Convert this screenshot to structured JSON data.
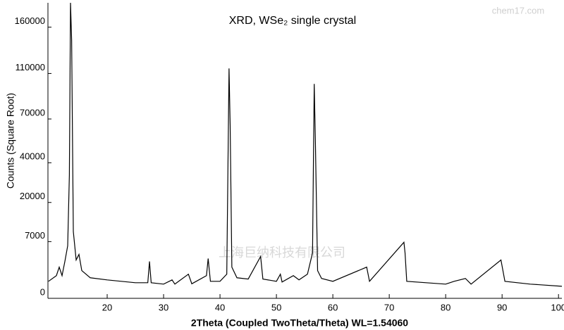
{
  "chart_data": {
    "type": "line",
    "title": "XRD, WSe₂ single crystal",
    "x_label": "2Theta (Coupled TwoTheta/Theta) WL=1.54060",
    "y_label": "Counts (Square Root)",
    "y_scale": "sqrt",
    "watermarks": [
      "上海巨纳科技有限公司",
      "chem17.com"
    ],
    "x": [
      9.6,
      11,
      11.5,
      12,
      12.5,
      13,
      13.3,
      13.5,
      13.7,
      14.0,
      14.5,
      15,
      15.5,
      17,
      20,
      25,
      27.2,
      27.5,
      27.8,
      30,
      31.5,
      32,
      34.4,
      35,
      37.6,
      37.9,
      38.3,
      40,
      41.2,
      41.6,
      41.8,
      42.1,
      43,
      45,
      47.2,
      47.6,
      50,
      50.7,
      51,
      53,
      54,
      55.5,
      56.4,
      56.7,
      56.9,
      57.3,
      58,
      60,
      66,
      66.5,
      72.6,
      72.8,
      73.1,
      80,
      81.5,
      83.5,
      84.5,
      89.8,
      90.5,
      95,
      100.6
    ],
    "series": [
      {
        "name": "WSe2",
        "color": "#000000",
        "values": [
          630,
          1120,
          2120,
          1120,
          2960,
          6000,
          33200,
          190000,
          145000,
          9700,
          3200,
          4200,
          1670,
          920,
          740,
          530,
          530,
          2960,
          530,
          440,
          740,
          440,
          1270,
          460,
          1120,
          3440,
          630,
          630,
          1270,
          115000,
          65300,
          2120,
          920,
          810,
          3820,
          810,
          630,
          1270,
          580,
          1120,
          740,
          1270,
          4490,
          100000,
          55000,
          1670,
          860,
          630,
          2120,
          630,
          6840,
          4490,
          630,
          440,
          630,
          860,
          440,
          3200,
          630,
          440,
          317
        ]
      }
    ],
    "xlim": [
      9.5,
      100.6
    ],
    "ylim": [
      0,
      190000
    ],
    "xticks": [
      20,
      30,
      40,
      50,
      60,
      70,
      80,
      90,
      100
    ],
    "yticks": [
      0,
      7000,
      20000,
      40000,
      70000,
      110000,
      160000
    ]
  }
}
